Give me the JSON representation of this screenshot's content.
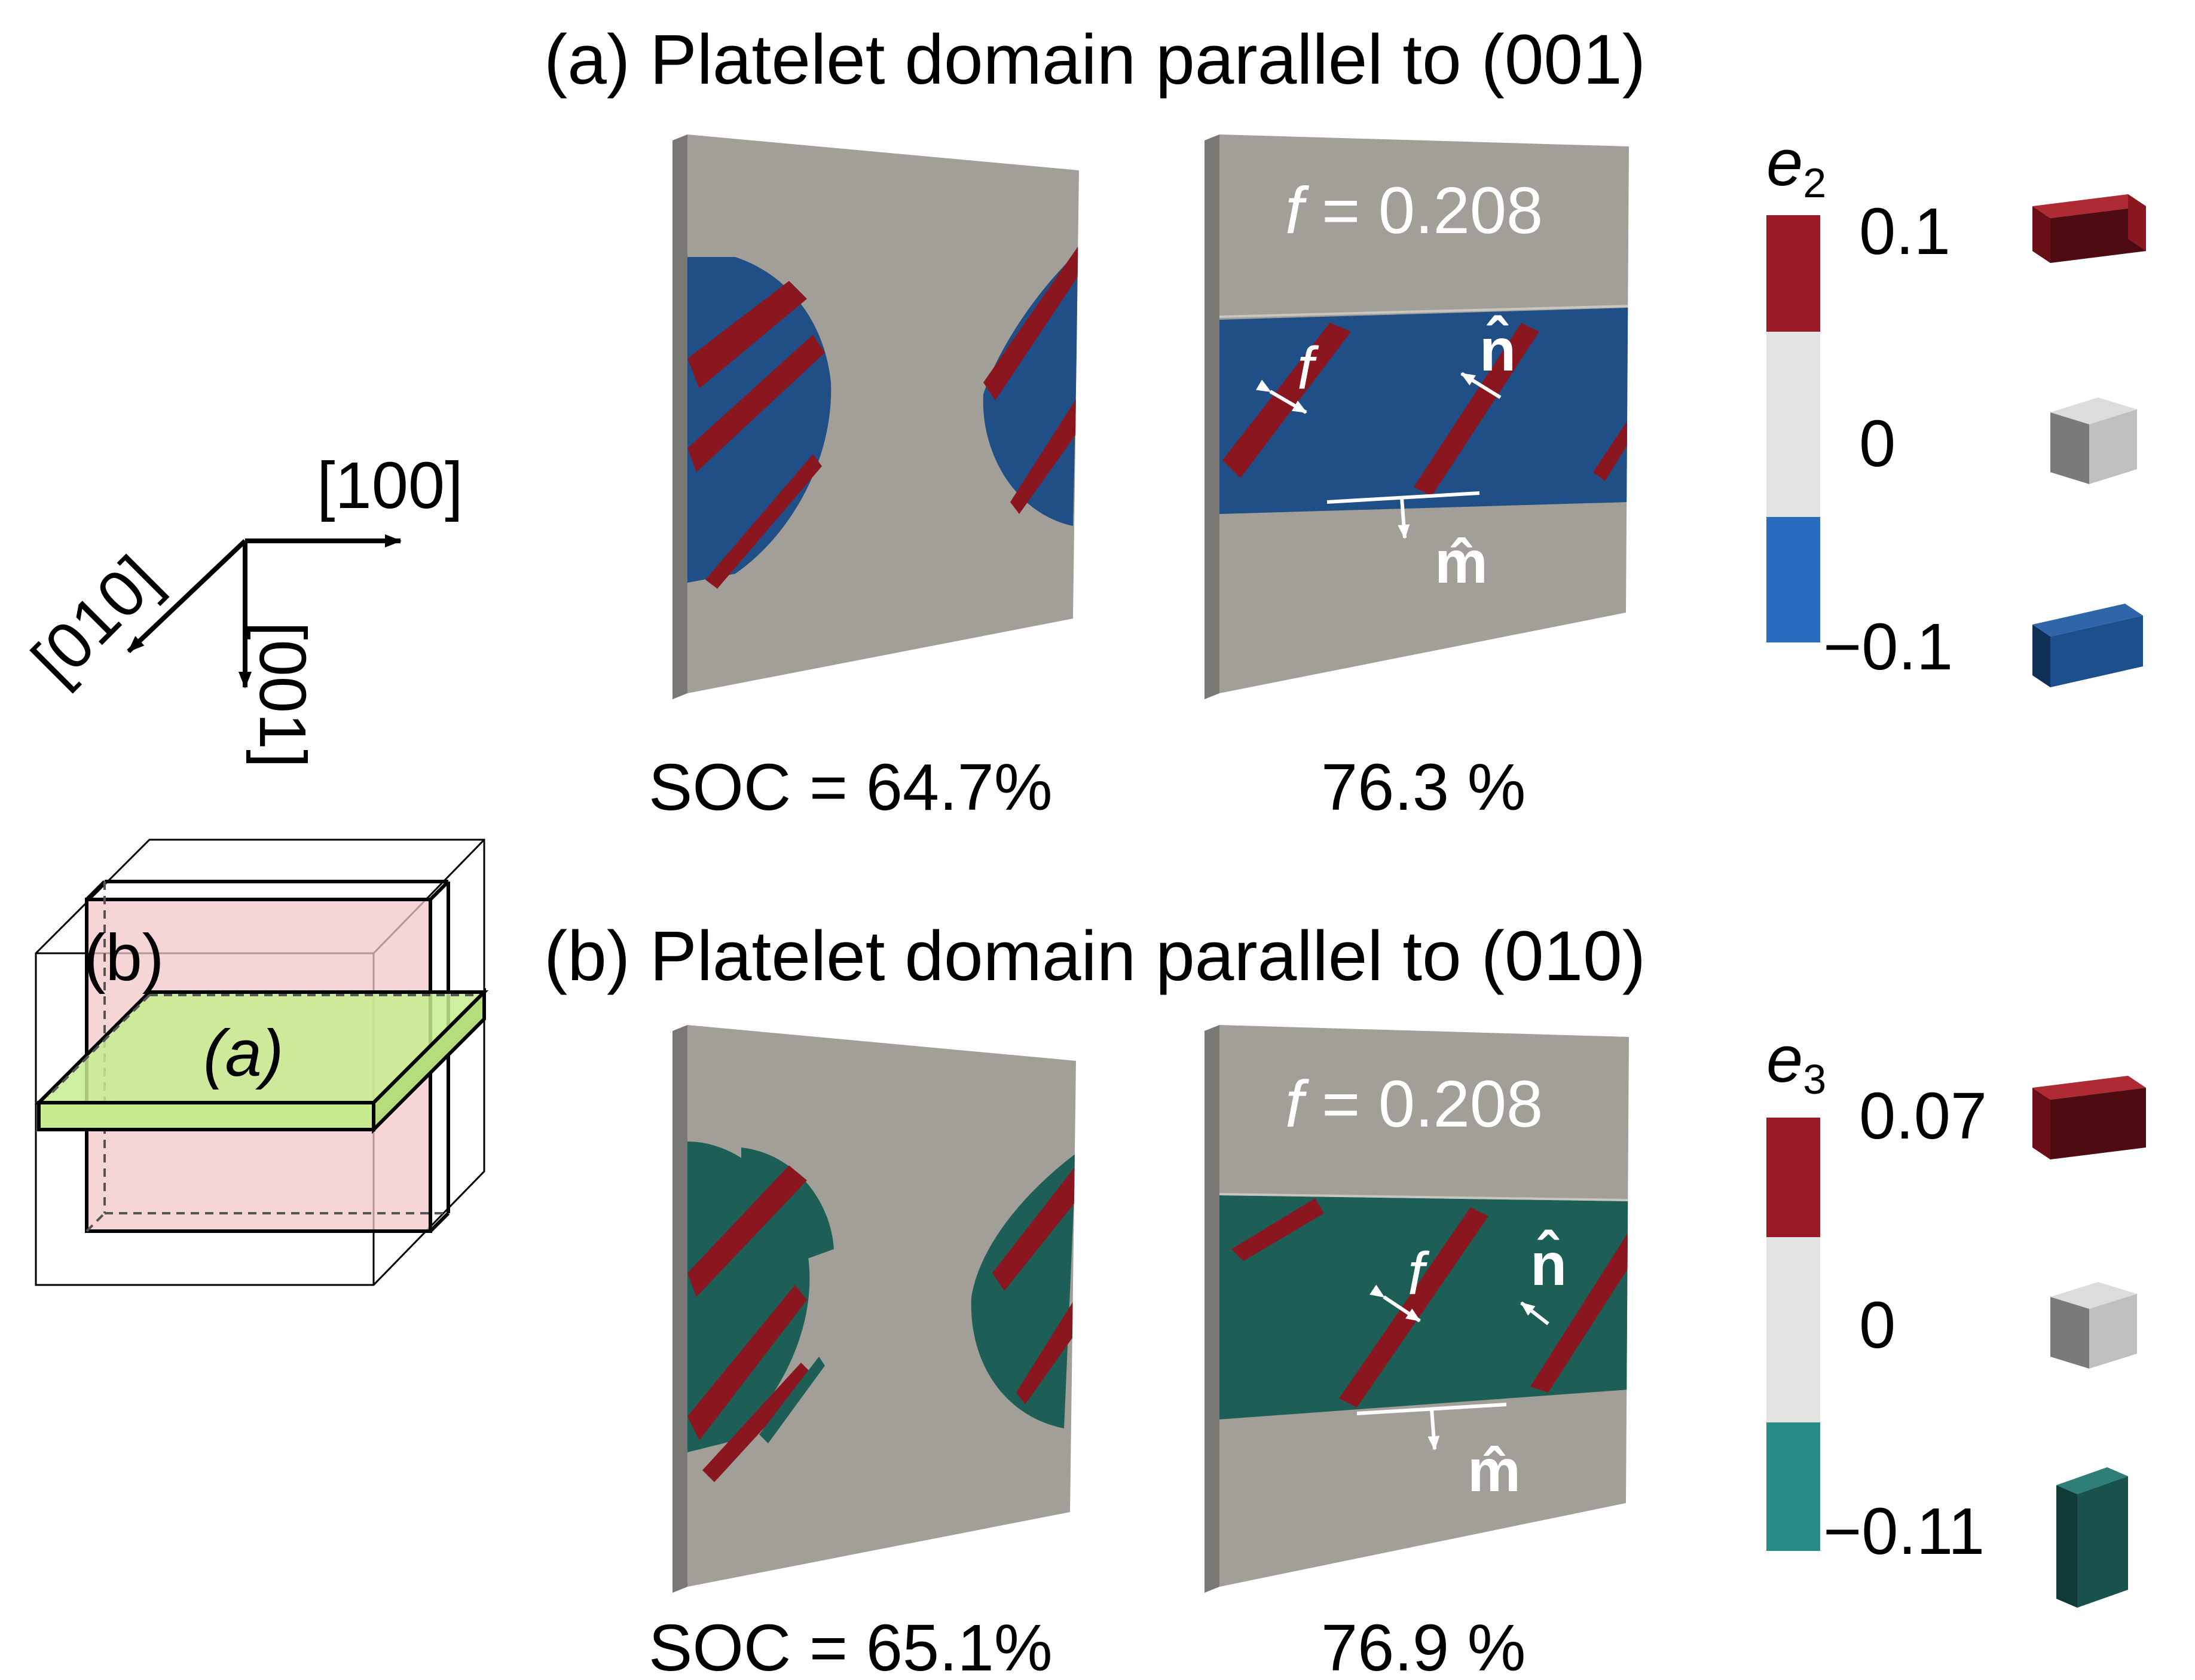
{
  "panel_a": {
    "title": "(a) Platelet domain parallel to (001)",
    "f_label_prefix": "f",
    "f_label_value": " = 0.208",
    "f_marker": "f",
    "n_label": "n̂",
    "m_label": "m̂",
    "soc_left": "SOC = 64.7%",
    "soc_right": "76.3 %",
    "colorbar": {
      "symbol": "e",
      "subscript": "2",
      "ticks": [
        "0.1",
        "0",
        "−0.1"
      ],
      "colors": {
        "high": "#9a1b27",
        "mid": "#e4e4e2",
        "low": "#2b6cc0"
      }
    }
  },
  "panel_b": {
    "title": "(b) Platelet domain parallel to (010)",
    "f_label_prefix": "f",
    "f_label_value": " = 0.208",
    "f_marker": "f",
    "n_label": "n̂",
    "m_label": "m̂",
    "soc_left": "SOC = 65.1%",
    "soc_right": "76.9 %",
    "colorbar": {
      "symbol": "e",
      "subscript": "3",
      "ticks": [
        "0.07",
        "0",
        "−0.11"
      ],
      "colors": {
        "high": "#9a1b27",
        "mid": "#e4e4e2",
        "low": "#2a8c88"
      }
    }
  },
  "axes": {
    "x": "[100]",
    "y": "[010]",
    "z": "[001]"
  },
  "cube_inset": {
    "label_b": "(b)",
    "label_a": "(a)"
  },
  "colors": {
    "slab_gray": "#a19f98",
    "slab_edge": "#7a7873",
    "domain_red": "#8a1620",
    "domain_blue": "#1f4f86",
    "domain_teal": "#1d5e57"
  }
}
